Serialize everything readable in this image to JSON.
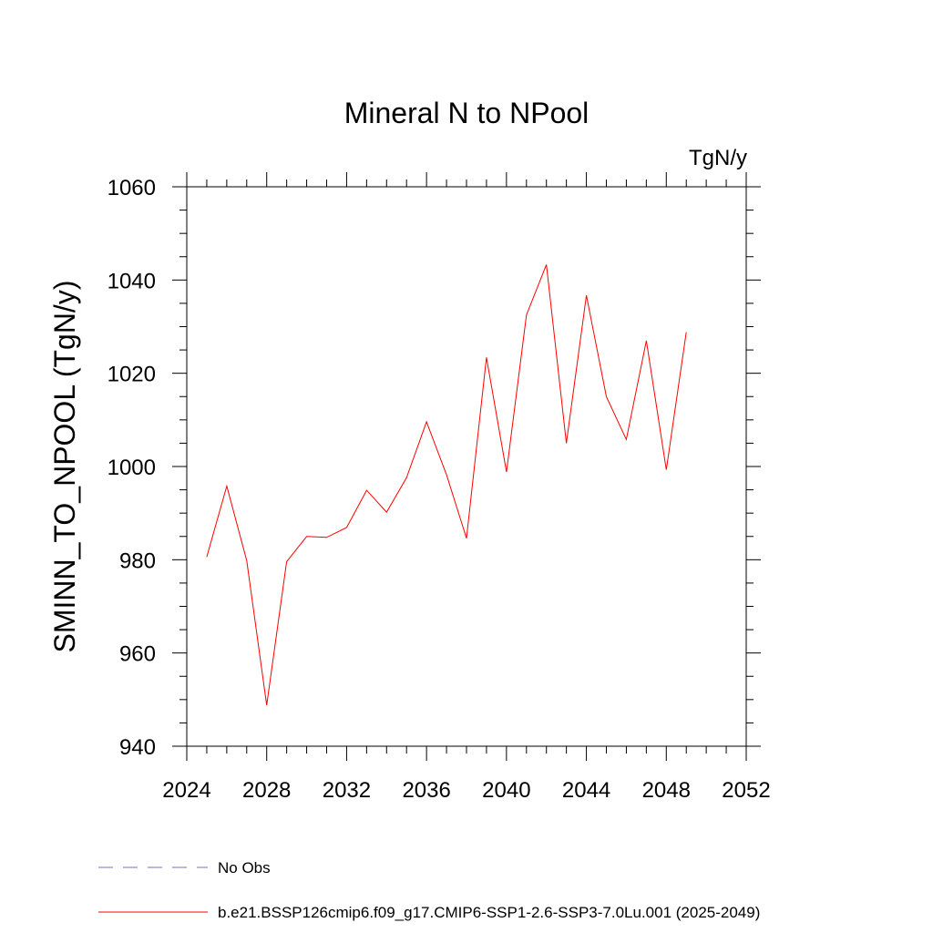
{
  "chart_data": {
    "type": "line",
    "title": "Mineral N to NPool",
    "units_label": "TgN/y",
    "ylabel": "SMINN_TO_NPOOL  (TgN/y)",
    "xlabel": "",
    "xlim": [
      2024,
      2052
    ],
    "ylim": [
      940,
      1060
    ],
    "x_ticks": [
      2024,
      2028,
      2032,
      2036,
      2040,
      2044,
      2048,
      2052
    ],
    "x_tick_labels": [
      "2024",
      "2028",
      "2032",
      "2036",
      "2040",
      "2044",
      "2048",
      "2052"
    ],
    "y_ticks": [
      940,
      960,
      980,
      1000,
      1020,
      1040,
      1060
    ],
    "y_tick_labels": [
      "940",
      "960",
      "980",
      "1000",
      "1020",
      "1040",
      "1060"
    ],
    "grid": false,
    "legend_position": "bottom-left",
    "series": [
      {
        "name": "No Obs",
        "color": "#7a6fbf",
        "dash": "dashed",
        "x": [],
        "y": []
      },
      {
        "name": "b.e21.BSSP126cmip6.f09_g17.CMIP6-SSP1-2.6-SSP3-7.0Lu.001 (2025-2049)",
        "color": "#ff0000",
        "dash": "solid",
        "x": [
          2025,
          2026,
          2027,
          2028,
          2029,
          2030,
          2031,
          2032,
          2033,
          2034,
          2035,
          2036,
          2037,
          2038,
          2039,
          2040,
          2041,
          2042,
          2043,
          2044,
          2045,
          2046,
          2047,
          2048,
          2049
        ],
        "y": [
          980.6,
          995.8,
          979.8,
          948.8,
          979.6,
          985.0,
          984.8,
          986.9,
          994.9,
          990.2,
          997.6,
          1009.6,
          998.2,
          984.6,
          1023.4,
          998.8,
          1032.5,
          1043.3,
          1005.0,
          1036.7,
          1015.0,
          1005.8,
          1027.0,
          999.3,
          1028.8
        ]
      }
    ]
  }
}
